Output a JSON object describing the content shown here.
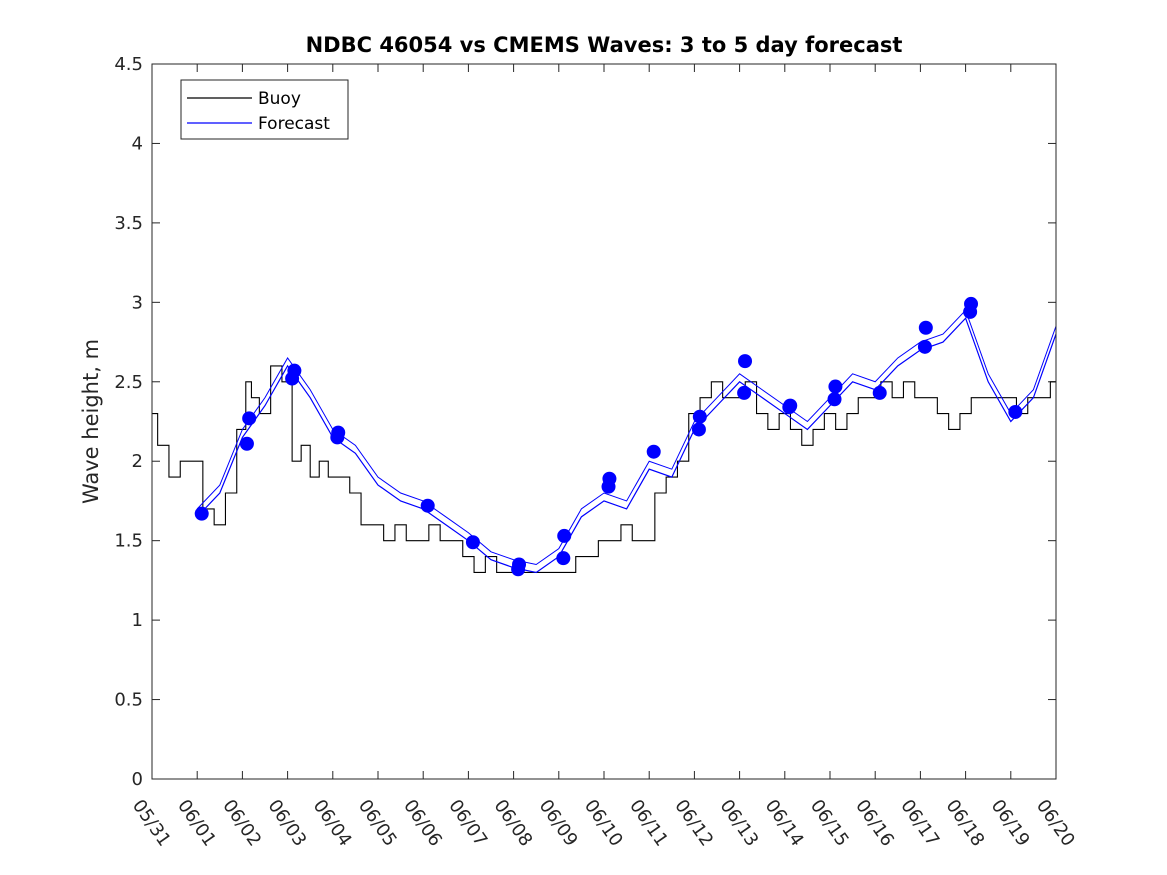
{
  "chart_data": {
    "type": "line",
    "title": "NDBC 46054 vs CMEMS Waves: 3 to 5 day forecast",
    "ylabel": "Wave height, m",
    "xlabel": "",
    "ylim": [
      0,
      4.5
    ],
    "yticks": [
      "0",
      "0.5",
      "1",
      "1.5",
      "2",
      "2.5",
      "3",
      "3.5",
      "4",
      "4.5"
    ],
    "xlim": [
      0,
      20
    ],
    "xticks": [
      "05/31",
      "06/01",
      "06/02",
      "06/03",
      "06/04",
      "06/05",
      "06/06",
      "06/07",
      "06/08",
      "06/09",
      "06/10",
      "06/11",
      "06/12",
      "06/13",
      "06/14",
      "06/15",
      "06/16",
      "06/17",
      "06/18",
      "06/19",
      "06/20"
    ],
    "legend_position": "top-left",
    "series": [
      {
        "name": "Buoy",
        "color": "#000000",
        "x": [
          0,
          0.25,
          0.5,
          0.75,
          1.0,
          1.25,
          1.5,
          1.75,
          2.0,
          2.15,
          2.25,
          2.5,
          2.75,
          3.0,
          3.2,
          3.4,
          3.6,
          3.8,
          4.0,
          4.25,
          4.5,
          4.75,
          5.0,
          5.25,
          5.5,
          5.75,
          6.0,
          6.25,
          6.5,
          6.75,
          7.0,
          7.25,
          7.5,
          7.75,
          8.0,
          8.25,
          8.5,
          8.75,
          9.0,
          9.25,
          9.5,
          9.75,
          10.0,
          10.25,
          10.5,
          10.75,
          11.0,
          11.25,
          11.5,
          11.75,
          12.0,
          12.25,
          12.5,
          12.75,
          13.0,
          13.25,
          13.5,
          13.75,
          14.0,
          14.25,
          14.5,
          14.75,
          15.0,
          15.25,
          15.5,
          15.75,
          16.0,
          16.25,
          16.5,
          16.75,
          17.0,
          17.25,
          17.5,
          17.75,
          18.0,
          18.25,
          18.5,
          18.75,
          19.0,
          19.25,
          19.5,
          19.75,
          20.0
        ],
        "values": [
          2.3,
          2.1,
          1.9,
          2.0,
          2.0,
          1.7,
          1.6,
          1.8,
          2.2,
          2.5,
          2.4,
          2.3,
          2.6,
          2.5,
          2.0,
          2.1,
          1.9,
          2.0,
          1.9,
          1.9,
          1.8,
          1.6,
          1.6,
          1.5,
          1.6,
          1.5,
          1.5,
          1.6,
          1.5,
          1.5,
          1.4,
          1.3,
          1.4,
          1.3,
          1.3,
          1.3,
          1.3,
          1.3,
          1.3,
          1.3,
          1.4,
          1.4,
          1.5,
          1.5,
          1.6,
          1.5,
          1.5,
          1.8,
          1.9,
          2.0,
          2.3,
          2.4,
          2.5,
          2.4,
          2.4,
          2.5,
          2.3,
          2.2,
          2.3,
          2.2,
          2.1,
          2.2,
          2.3,
          2.2,
          2.3,
          2.4,
          2.4,
          2.5,
          2.4,
          2.5,
          2.4,
          2.4,
          2.3,
          2.2,
          2.3,
          2.4,
          2.4,
          2.4,
          2.4,
          2.3,
          2.4,
          2.4,
          2.5
        ]
      },
      {
        "name": "Forecast",
        "color": "#0000ff",
        "x": [
          1.0,
          1.5,
          2.0,
          2.5,
          3.0,
          3.5,
          4.0,
          4.5,
          5.0,
          5.5,
          6.0,
          6.5,
          7.0,
          7.5,
          8.0,
          8.5,
          9.0,
          9.5,
          10.0,
          10.5,
          11.0,
          11.5,
          12.0,
          12.5,
          13.0,
          13.5,
          14.0,
          14.5,
          15.0,
          15.5,
          16.0,
          16.5,
          17.0,
          17.5,
          18.0,
          18.5,
          19.0,
          19.5,
          20.0
        ],
        "values": [
          1.65,
          1.8,
          2.15,
          2.35,
          2.6,
          2.4,
          2.15,
          2.05,
          1.85,
          1.75,
          1.7,
          1.6,
          1.5,
          1.38,
          1.33,
          1.3,
          1.4,
          1.65,
          1.75,
          1.7,
          1.95,
          1.9,
          2.2,
          2.35,
          2.5,
          2.4,
          2.3,
          2.2,
          2.35,
          2.5,
          2.45,
          2.6,
          2.7,
          2.75,
          2.9,
          2.5,
          2.25,
          2.4,
          2.8
        ]
      }
    ],
    "markers": {
      "x": [
        1.1,
        2.1,
        2.15,
        3.1,
        3.15,
        4.1,
        4.12,
        6.1,
        7.1,
        8.1,
        8.12,
        9.1,
        9.12,
        10.1,
        10.12,
        11.1,
        12.1,
        12.12,
        13.1,
        13.12,
        14.1,
        14.12,
        15.1,
        15.12,
        16.1,
        17.1,
        17.12,
        18.1,
        18.12,
        19.1
      ],
      "values": [
        1.67,
        2.11,
        2.27,
        2.52,
        2.57,
        2.15,
        2.18,
        1.72,
        1.49,
        1.32,
        1.35,
        1.39,
        1.53,
        1.84,
        1.89,
        2.06,
        2.2,
        2.28,
        2.43,
        2.63,
        2.34,
        2.35,
        2.39,
        2.47,
        2.43,
        2.72,
        2.84,
        2.94,
        2.99,
        2.31
      ]
    }
  }
}
